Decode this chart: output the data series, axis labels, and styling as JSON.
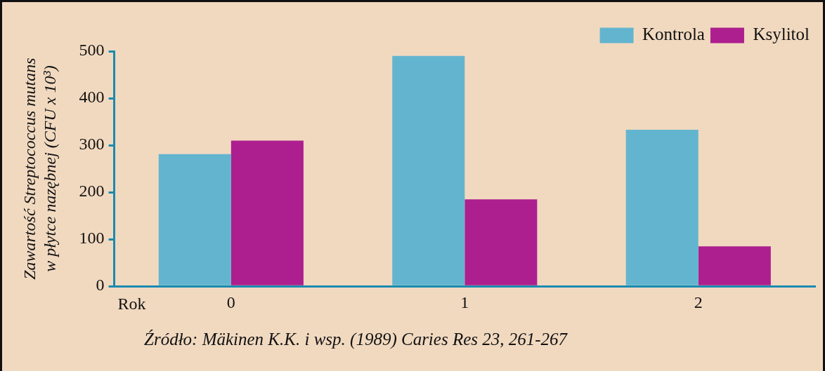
{
  "chart_data": {
    "type": "bar",
    "ylabel": "Zawartość Streptococcus mutans\nw płytce nazębnej (CFU x 10³)",
    "xlabel": "Rok",
    "categories": [
      "0",
      "1",
      "2"
    ],
    "series": [
      {
        "name": "Kontrola",
        "color": "#63b5cf",
        "values": [
          281,
          490,
          333
        ]
      },
      {
        "name": "Ksylitol",
        "color": "#ad1f8e",
        "values": [
          310,
          185,
          85
        ]
      }
    ],
    "ylim": [
      0,
      500
    ],
    "yticks": [
      0,
      100,
      200,
      300,
      400,
      500
    ],
    "grid": false,
    "legend": "top right",
    "annotations": [
      "Źródło: Mäkinen K.K. i wsp. (1989) Caries Res 23, 261-267"
    ]
  }
}
